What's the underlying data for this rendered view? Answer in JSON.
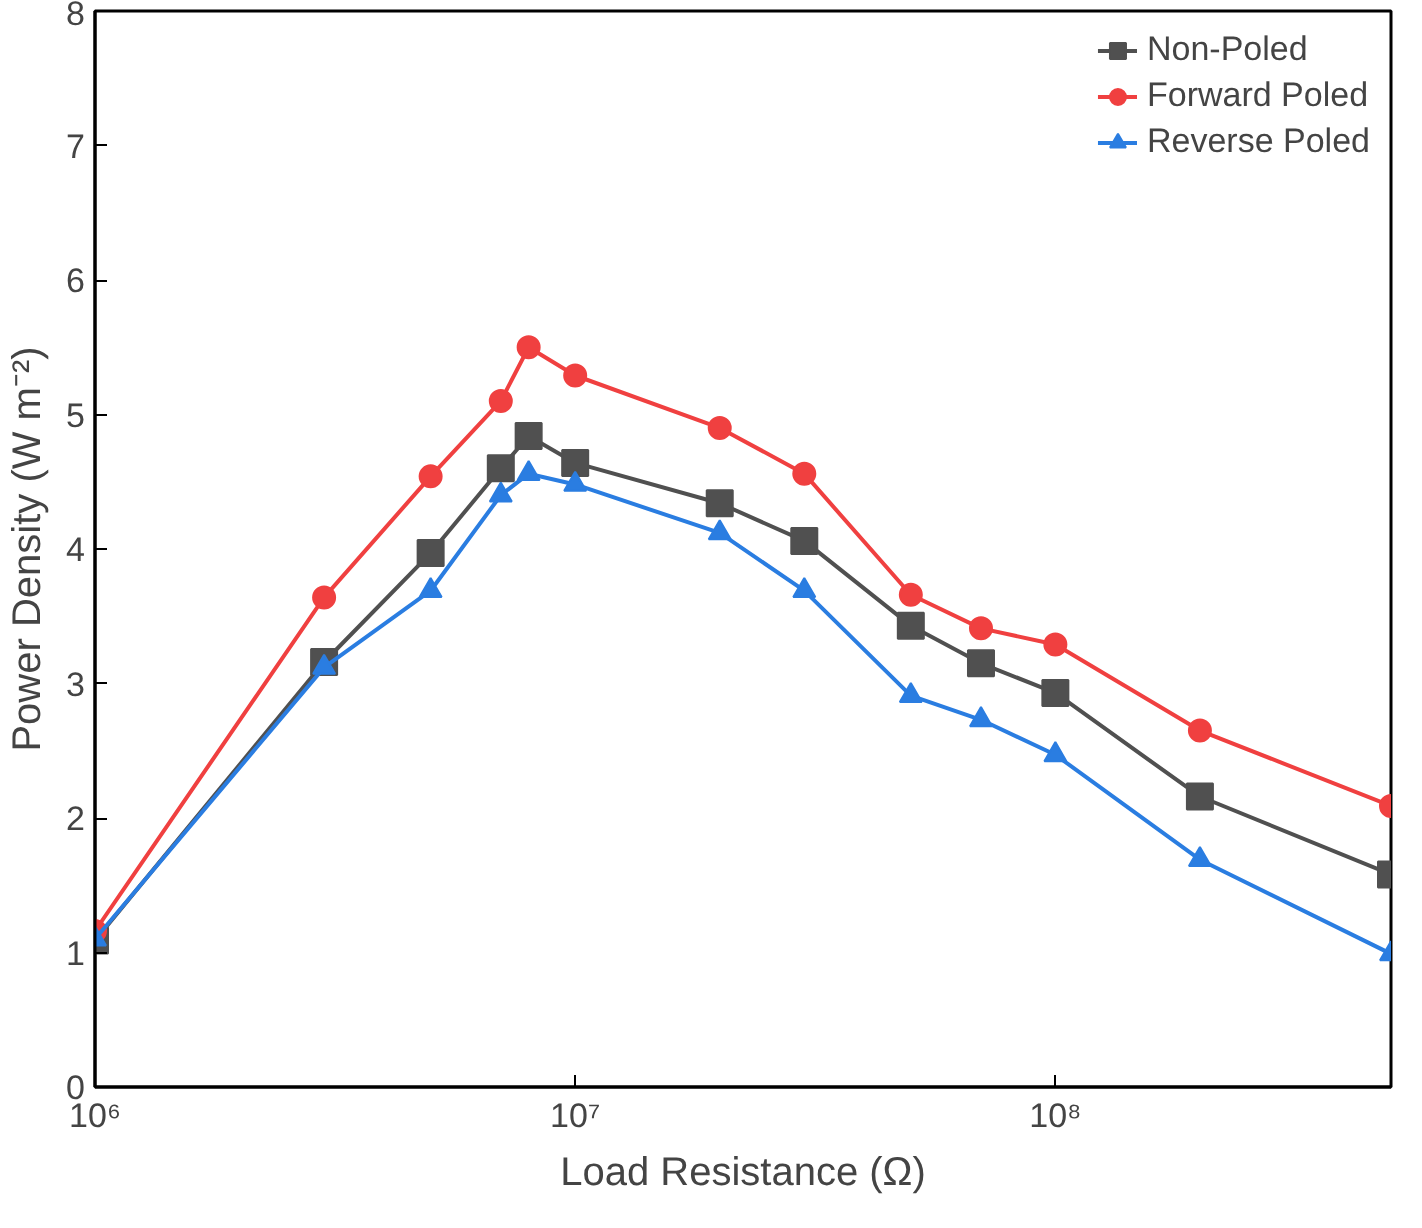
{
  "chart_data": {
    "type": "line",
    "xlabel": "Load Resistance (Ω)",
    "ylabel": "Power Density (W m⁻²)",
    "log": "x",
    "x": [
      1000000,
      3000000,
      5000000,
      7000000,
      8000000,
      10000000,
      20000000,
      30000000,
      50000000,
      70000000,
      100000000,
      200000000,
      500000000
    ],
    "xlim": [
      1000000,
      500000000
    ],
    "xticks": [
      {
        "value": 1000000,
        "label": "10⁶"
      },
      {
        "value": 10000000,
        "label": "10⁷"
      },
      {
        "value": 100000000,
        "label": "10⁸"
      }
    ],
    "ylim": [
      0,
      8
    ],
    "yticks": [
      0,
      1,
      2,
      3,
      4,
      5,
      6,
      7,
      8
    ],
    "grid": false,
    "legend": "top right",
    "line_style": "solid",
    "series": [
      {
        "name": "Non-Poled",
        "color": "#505050",
        "marker": "square",
        "values": [
          1.09,
          3.16,
          3.97,
          4.6,
          4.84,
          4.64,
          4.34,
          4.06,
          3.43,
          3.15,
          2.93,
          2.16,
          1.58
        ]
      },
      {
        "name": "Forward Poled",
        "color": "#f04040",
        "marker": "circle",
        "values": [
          1.16,
          3.64,
          4.54,
          5.1,
          5.5,
          5.29,
          4.9,
          4.56,
          3.66,
          3.41,
          3.29,
          2.65,
          2.09
        ]
      },
      {
        "name": "Reverse Poled",
        "color": "#2a7de1",
        "marker": "triangle",
        "values": [
          1.1,
          3.12,
          3.69,
          4.4,
          4.56,
          4.48,
          4.12,
          3.69,
          2.91,
          2.73,
          2.47,
          1.69,
          0.99
        ]
      }
    ]
  }
}
